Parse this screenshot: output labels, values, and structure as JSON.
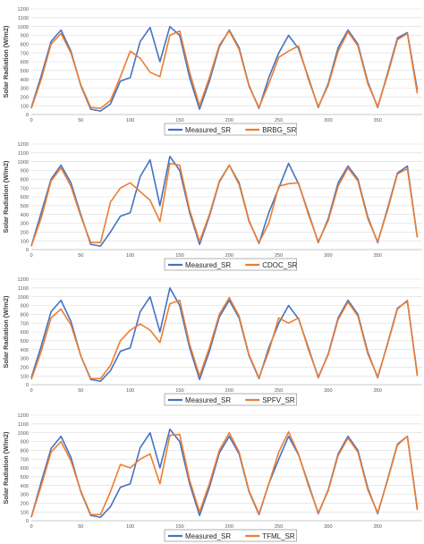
{
  "chart_data": [
    {
      "type": "line",
      "ylabel": "Solar Radiation (W/m2)",
      "ylim": [
        0,
        1200
      ],
      "xlim": [
        0,
        395
      ],
      "yticks": [
        "0",
        "100",
        "200",
        "300",
        "400",
        "500",
        "600",
        "700",
        "800",
        "900",
        "1000",
        "1100",
        "1200"
      ],
      "xticks": [
        "0",
        "50",
        "100",
        "150",
        "200",
        "250",
        "300",
        "350"
      ],
      "grid": "horizontal",
      "legend_position": "bottom",
      "x": [
        0,
        10,
        20,
        30,
        40,
        50,
        60,
        70,
        80,
        90,
        100,
        110,
        120,
        130,
        140,
        150,
        160,
        170,
        180,
        190,
        200,
        210,
        220,
        230,
        240,
        250,
        260,
        270,
        280,
        290,
        300,
        310,
        320,
        330,
        340,
        350,
        360,
        370,
        380,
        390
      ],
      "series": [
        {
          "name": "Measured_SR",
          "color": "#4472c4",
          "values": [
            80,
            440,
            830,
            960,
            720,
            330,
            60,
            40,
            120,
            380,
            420,
            830,
            990,
            600,
            1000,
            900,
            420,
            60,
            380,
            770,
            960,
            760,
            330,
            70,
            420,
            700,
            900,
            750,
            420,
            80,
            350,
            760,
            960,
            800,
            370,
            80,
            470,
            870,
            930,
            280
          ]
        },
        {
          "name": "BRBG_SR",
          "color": "#ed7d31",
          "values": [
            70,
            400,
            800,
            920,
            700,
            340,
            80,
            70,
            160,
            430,
            720,
            640,
            480,
            430,
            900,
            950,
            480,
            100,
            420,
            790,
            950,
            740,
            320,
            80,
            350,
            650,
            720,
            780,
            400,
            90,
            330,
            720,
            940,
            780,
            350,
            90,
            450,
            850,
            920,
            240
          ]
        }
      ]
    },
    {
      "type": "line",
      "ylabel": "Solar Radiation (W/m2)",
      "ylim": [
        0,
        1200
      ],
      "xlim": [
        0,
        395
      ],
      "yticks": [
        "0",
        "100",
        "200",
        "300",
        "400",
        "500",
        "600",
        "700",
        "800",
        "900",
        "1000",
        "1100",
        "1200"
      ],
      "xticks": [
        "0",
        "50",
        "100",
        "150",
        "200",
        "250",
        "300",
        "350"
      ],
      "grid": "horizontal",
      "legend_position": "bottom",
      "x": [
        0,
        10,
        20,
        30,
        40,
        50,
        60,
        70,
        80,
        90,
        100,
        110,
        120,
        130,
        140,
        150,
        160,
        170,
        180,
        190,
        200,
        210,
        220,
        230,
        240,
        250,
        260,
        270,
        280,
        290,
        300,
        310,
        320,
        330,
        340,
        350,
        360,
        370,
        380,
        390
      ],
      "series": [
        {
          "name": "Measured_SR",
          "color": "#4472c4",
          "values": [
            40,
            420,
            800,
            960,
            760,
            400,
            60,
            40,
            200,
            380,
            420,
            830,
            1020,
            500,
            1060,
            900,
            420,
            60,
            380,
            770,
            960,
            760,
            330,
            70,
            420,
            700,
            980,
            750,
            420,
            80,
            350,
            760,
            950,
            800,
            370,
            80,
            470,
            870,
            950,
            140
          ]
        },
        {
          "name": "CDOC_SR",
          "color": "#ed7d31",
          "values": [
            40,
            360,
            780,
            930,
            720,
            380,
            80,
            80,
            540,
            700,
            760,
            660,
            560,
            320,
            980,
            960,
            450,
            90,
            400,
            780,
            960,
            740,
            320,
            80,
            300,
            720,
            750,
            760,
            400,
            90,
            330,
            720,
            930,
            780,
            350,
            90,
            450,
            860,
            920,
            140
          ]
        }
      ]
    },
    {
      "type": "line",
      "ylabel": "Solar Radiation (W/m2)",
      "ylim": [
        0,
        1200
      ],
      "xlim": [
        0,
        395
      ],
      "yticks": [
        "0",
        "100",
        "200",
        "300",
        "400",
        "500",
        "600",
        "700",
        "800",
        "900",
        "1000",
        "1100",
        "1200"
      ],
      "xticks": [
        "0",
        "50",
        "100",
        "150",
        "200",
        "250",
        "300",
        "350"
      ],
      "grid": "horizontal",
      "legend_position": "bottom",
      "x": [
        0,
        10,
        20,
        30,
        40,
        50,
        60,
        70,
        80,
        90,
        100,
        110,
        120,
        130,
        140,
        150,
        160,
        170,
        180,
        190,
        200,
        210,
        220,
        230,
        240,
        250,
        260,
        270,
        280,
        290,
        300,
        310,
        320,
        330,
        340,
        350,
        360,
        370,
        380,
        390
      ],
      "series": [
        {
          "name": "Measured_SR",
          "color": "#4472c4",
          "values": [
            80,
            440,
            830,
            960,
            720,
            330,
            60,
            40,
            160,
            380,
            420,
            830,
            1000,
            600,
            1100,
            900,
            420,
            60,
            380,
            770,
            960,
            760,
            330,
            70,
            420,
            700,
            900,
            750,
            420,
            80,
            350,
            760,
            960,
            800,
            370,
            80,
            470,
            870,
            950,
            120
          ]
        },
        {
          "name": "SPFV_SR",
          "color": "#ed7d31",
          "values": [
            60,
            380,
            760,
            860,
            680,
            330,
            70,
            70,
            220,
            500,
            620,
            690,
            620,
            480,
            920,
            960,
            460,
            100,
            420,
            800,
            990,
            780,
            340,
            80,
            380,
            760,
            700,
            760,
            400,
            90,
            340,
            740,
            940,
            780,
            350,
            90,
            460,
            860,
            960,
            100
          ]
        }
      ]
    },
    {
      "type": "line",
      "ylabel": "Solar Radiation (W/m2)",
      "ylim": [
        0,
        1200
      ],
      "xlim": [
        0,
        395
      ],
      "yticks": [
        "0",
        "100",
        "200",
        "300",
        "400",
        "500",
        "600",
        "700",
        "800",
        "900",
        "1000",
        "1100",
        "1200"
      ],
      "xticks": [
        "0",
        "50",
        "100",
        "150",
        "200",
        "250",
        "300",
        "350"
      ],
      "grid": "horizontal",
      "legend_position": "bottom",
      "x": [
        0,
        10,
        20,
        30,
        40,
        50,
        60,
        70,
        80,
        90,
        100,
        110,
        120,
        130,
        140,
        150,
        160,
        170,
        180,
        190,
        200,
        210,
        220,
        230,
        240,
        250,
        260,
        270,
        280,
        290,
        300,
        310,
        320,
        330,
        340,
        350,
        360,
        370,
        380,
        390
      ],
      "series": [
        {
          "name": "Measured_SR",
          "color": "#4472c4",
          "values": [
            40,
            440,
            820,
            960,
            720,
            330,
            60,
            40,
            160,
            380,
            420,
            830,
            1000,
            600,
            1040,
            900,
            420,
            60,
            380,
            770,
            960,
            760,
            330,
            70,
            420,
            700,
            960,
            750,
            420,
            80,
            350,
            760,
            960,
            800,
            370,
            80,
            470,
            870,
            960,
            140
          ]
        },
        {
          "name": "TFML_SR",
          "color": "#ed7d31",
          "values": [
            40,
            400,
            780,
            900,
            680,
            340,
            70,
            70,
            330,
            640,
            600,
            700,
            760,
            420,
            970,
            980,
            460,
            100,
            420,
            800,
            1000,
            780,
            340,
            80,
            420,
            780,
            1010,
            760,
            400,
            90,
            340,
            740,
            940,
            780,
            350,
            90,
            460,
            860,
            960,
            120
          ]
        }
      ]
    }
  ]
}
